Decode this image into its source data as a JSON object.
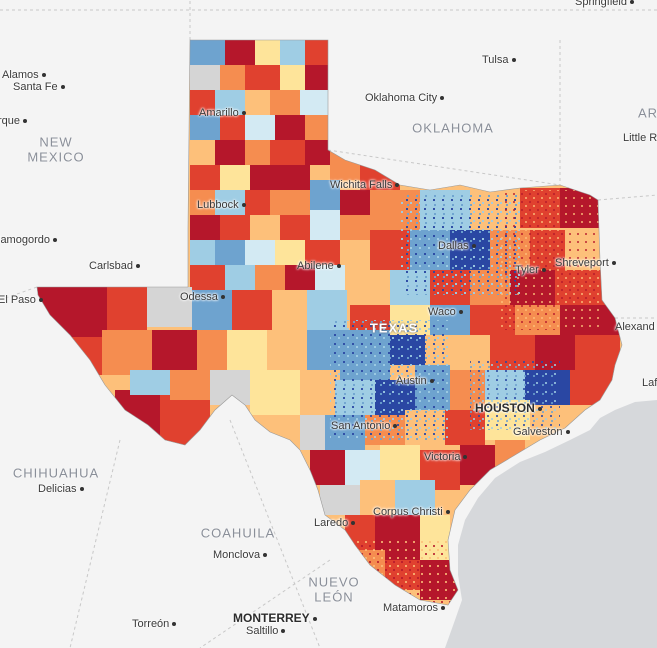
{
  "map": {
    "regions": {
      "oklahoma": "OKLAHOMA",
      "texas": "TEXAS",
      "new_mexico_1": "NEW",
      "new_mexico_2": "MEXICO",
      "chihuahua": "CHIHUAHUA",
      "coahuila": "COAHUILA",
      "nuevo_leon_1": "NUEVO",
      "nuevo_leon_2": "LEÓN",
      "arkansas": "AR"
    },
    "cities": {
      "springfield": "Springfield",
      "tulsa": "Tulsa",
      "alamos": "Alamos",
      "santa_fe": "Santa Fe",
      "albuquerque": "rque",
      "oklahoma_city": "Oklahoma City",
      "little_rock": "Little R",
      "amarillo": "Amarillo",
      "wichita_falls": "Wichita Falls",
      "lubbock": "Lubbock",
      "alamogordo": "lamogordo",
      "dallas": "Dallas",
      "carlsbad": "Carlsbad",
      "abilene": "Abilene",
      "tyler": "Tyler",
      "shreveport": "Shreveport",
      "el_paso": "El Paso",
      "odessa": "Odessa",
      "waco": "Waco",
      "alexandria": "Alexand",
      "austin": "Austin",
      "lafayette": "Laf",
      "houston": "HOUSTON",
      "san_antonio": "San Antonio",
      "galveston": "Galveston",
      "victoria": "Victoria",
      "delicias": "Delicias",
      "corpus_christi": "Corpus Christi",
      "laredo": "Laredo",
      "monclova": "Monclova",
      "matamoros": "Matamoros",
      "monterrey": "MONTERREY",
      "torreon": "Torreón",
      "saltillo": "Saltillo"
    },
    "colors": {
      "background": "#f4f4f4",
      "water": "#d6d8db",
      "dark_red": "#b5172b",
      "red": "#e0412f",
      "orange": "#f58d50",
      "light_orange": "#fdc07a",
      "yellow": "#fee49a",
      "pale_blue": "#d3eaf3",
      "light_blue": "#9fcde4",
      "blue": "#6ea3cf",
      "dark_blue": "#2a47a3",
      "no_data": "#d5d5d5"
    }
  }
}
